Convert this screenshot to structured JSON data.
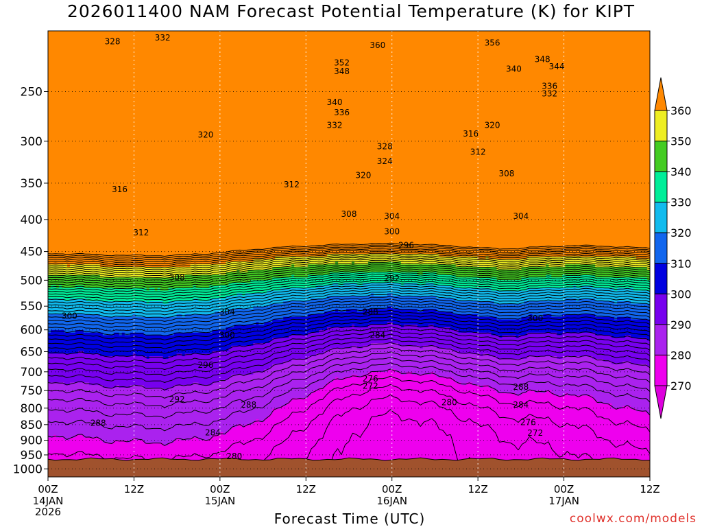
{
  "title": "2026011400 NAM Forecast Potential Temperature (K) for KIPT",
  "credit": "coolwx.com/models",
  "chart_data": {
    "type": "heatmap",
    "xlabel": "Forecast Time (UTC)",
    "ylabel": "",
    "ylim": [
      1030,
      200
    ],
    "y_scale": "log-pressure",
    "grid": true,
    "y_ticks": [
      250,
      300,
      350,
      400,
      450,
      500,
      550,
      600,
      650,
      700,
      750,
      800,
      850,
      900,
      950,
      1000
    ],
    "x_ticks": [
      {
        "hour": 0,
        "label": "00Z",
        "date": "14JAN",
        "year": "2026"
      },
      {
        "hour": 12,
        "label": "12Z",
        "date": "",
        "year": ""
      },
      {
        "hour": 24,
        "label": "00Z",
        "date": "15JAN",
        "year": ""
      },
      {
        "hour": 36,
        "label": "12Z",
        "date": "",
        "year": ""
      },
      {
        "hour": 48,
        "label": "00Z",
        "date": "16JAN",
        "year": ""
      },
      {
        "hour": 60,
        "label": "12Z",
        "date": "",
        "year": ""
      },
      {
        "hour": 72,
        "label": "00Z",
        "date": "17JAN",
        "year": ""
      },
      {
        "hour": 84,
        "label": "12Z",
        "date": "",
        "year": ""
      }
    ],
    "colorbar": {
      "levels": [
        270,
        280,
        290,
        300,
        310,
        320,
        330,
        340,
        350,
        360
      ],
      "colors": {
        "lt270": "#dd00dd",
        "270": "#ee00ee",
        "280": "#aa22ee",
        "290": "#7700ee",
        "300": "#0000e0",
        "310": "#1166ee",
        "320": "#11bbee",
        "330": "#00ee99",
        "340": "#44cc22",
        "350": "#eeee22",
        "gt360": "#ff8800",
        "360": "#ffbb00"
      }
    },
    "terrain_color": "#a0522d",
    "contour_interval": 2,
    "contour_labels": [
      {
        "value": "328",
        "hour": 9,
        "p": 208
      },
      {
        "value": "332",
        "hour": 16,
        "p": 205
      },
      {
        "value": "360",
        "hour": 46,
        "p": 211
      },
      {
        "value": "356",
        "hour": 62,
        "p": 209
      },
      {
        "value": "352",
        "hour": 41,
        "p": 225
      },
      {
        "value": "348",
        "hour": 41,
        "p": 232
      },
      {
        "value": "348",
        "hour": 69,
        "p": 222
      },
      {
        "value": "344",
        "hour": 71,
        "p": 228
      },
      {
        "value": "340",
        "hour": 65,
        "p": 230
      },
      {
        "value": "336",
        "hour": 70,
        "p": 245
      },
      {
        "value": "332",
        "hour": 70,
        "p": 252
      },
      {
        "value": "340",
        "hour": 40,
        "p": 260
      },
      {
        "value": "336",
        "hour": 41,
        "p": 270
      },
      {
        "value": "332",
        "hour": 40,
        "p": 283
      },
      {
        "value": "320",
        "hour": 22,
        "p": 293
      },
      {
        "value": "320",
        "hour": 62,
        "p": 283
      },
      {
        "value": "316",
        "hour": 59,
        "p": 292
      },
      {
        "value": "328",
        "hour": 47,
        "p": 306
      },
      {
        "value": "312",
        "hour": 60,
        "p": 312
      },
      {
        "value": "324",
        "hour": 47,
        "p": 323
      },
      {
        "value": "320",
        "hour": 44,
        "p": 340
      },
      {
        "value": "308",
        "hour": 64,
        "p": 338
      },
      {
        "value": "312",
        "hour": 34,
        "p": 352
      },
      {
        "value": "316",
        "hour": 10,
        "p": 358
      },
      {
        "value": "308",
        "hour": 42,
        "p": 392
      },
      {
        "value": "304",
        "hour": 48,
        "p": 395
      },
      {
        "value": "304",
        "hour": 66,
        "p": 395
      },
      {
        "value": "312",
        "hour": 13,
        "p": 420
      },
      {
        "value": "300",
        "hour": 48,
        "p": 418
      },
      {
        "value": "296",
        "hour": 50,
        "p": 440
      },
      {
        "value": "308",
        "hour": 18,
        "p": 495
      },
      {
        "value": "292",
        "hour": 48,
        "p": 497
      },
      {
        "value": "304",
        "hour": 25,
        "p": 562
      },
      {
        "value": "300",
        "hour": 3,
        "p": 570
      },
      {
        "value": "288",
        "hour": 45,
        "p": 562
      },
      {
        "value": "300",
        "hour": 68,
        "p": 575
      },
      {
        "value": "300",
        "hour": 25,
        "p": 612
      },
      {
        "value": "284",
        "hour": 46,
        "p": 612
      },
      {
        "value": "296",
        "hour": 22,
        "p": 683
      },
      {
        "value": "276",
        "hour": 45,
        "p": 718
      },
      {
        "value": "272",
        "hour": 45,
        "p": 737
      },
      {
        "value": "288",
        "hour": 66,
        "p": 740
      },
      {
        "value": "292",
        "hour": 18,
        "p": 775
      },
      {
        "value": "280",
        "hour": 56,
        "p": 783
      },
      {
        "value": "288",
        "hour": 28,
        "p": 790
      },
      {
        "value": "284",
        "hour": 66,
        "p": 790
      },
      {
        "value": "288",
        "hour": 7,
        "p": 845
      },
      {
        "value": "276",
        "hour": 67,
        "p": 843
      },
      {
        "value": "284",
        "hour": 23,
        "p": 875
      },
      {
        "value": "272",
        "hour": 68,
        "p": 877
      },
      {
        "value": "280",
        "hour": 26,
        "p": 955
      }
    ]
  }
}
